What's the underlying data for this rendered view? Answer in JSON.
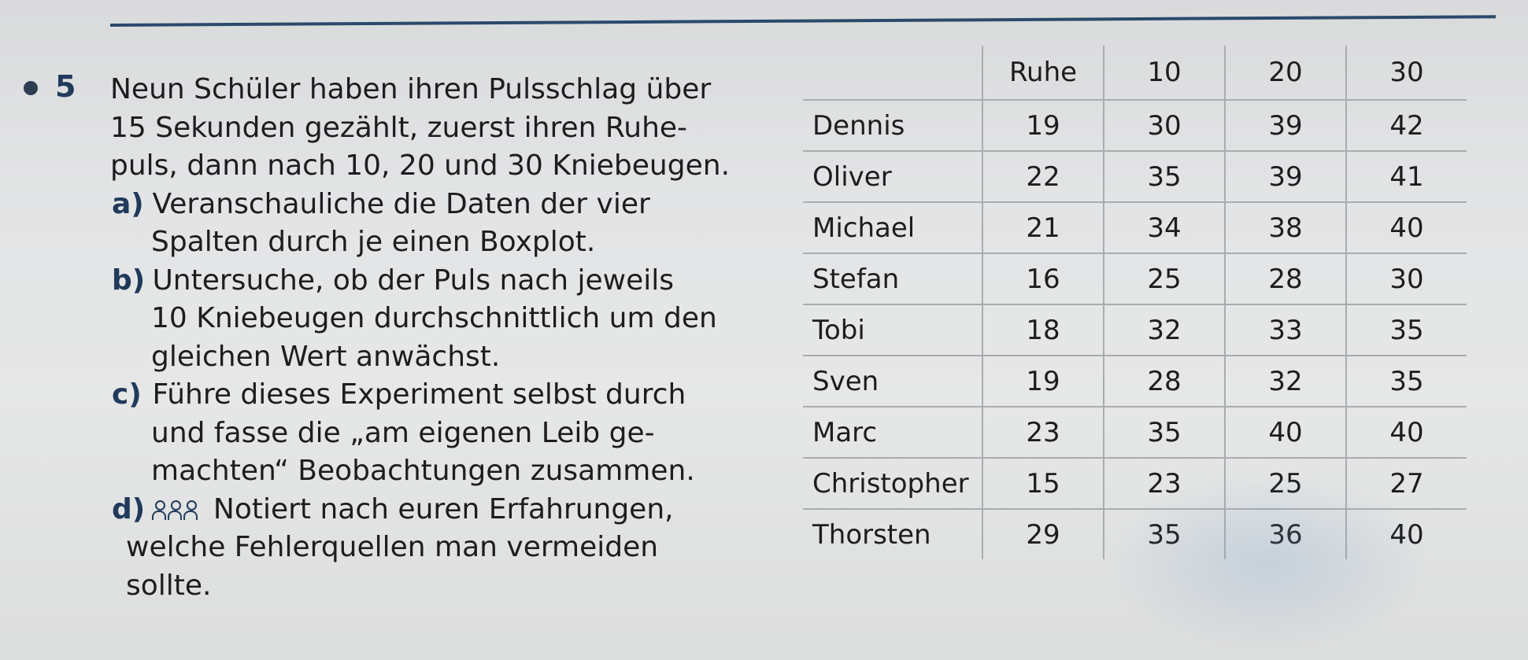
{
  "exercise": {
    "number": "5",
    "intro_lines": [
      "Neun Schüler haben ihren Pulsschlag über",
      "15 Sekunden gezählt, zuerst ihren Ruhe-",
      "puls, dann nach 10, 20 und 30 Kniebeugen."
    ],
    "part_a": {
      "label": "a)",
      "lines": [
        "Veranschauliche die Daten der vier",
        "Spalten durch je einen Boxplot."
      ]
    },
    "part_b": {
      "label": "b)",
      "lines": [
        "Untersuche, ob der Puls nach jeweils",
        "10 Kniebeugen durchschnittlich um den",
        "gleichen Wert anwächst."
      ]
    },
    "part_c": {
      "label": "c)",
      "lines": [
        "Führe dieses Experiment selbst durch",
        "und fasse die „am eigenen Leib ge-",
        "machten“ Beobachtungen zusammen."
      ]
    },
    "part_d": {
      "label": "d)",
      "icon": "group-work-icon",
      "lines": [
        "Notiert nach euren Erfahrungen,",
        "welche Fehlerquellen man vermeiden",
        "sollte."
      ]
    }
  },
  "table": {
    "headers": [
      "",
      "Ruhe",
      "10",
      "20",
      "30"
    ],
    "rows": [
      {
        "name": "Dennis",
        "values": [
          "19",
          "30",
          "39",
          "42"
        ]
      },
      {
        "name": "Oliver",
        "values": [
          "22",
          "35",
          "39",
          "41"
        ]
      },
      {
        "name": "Michael",
        "values": [
          "21",
          "34",
          "38",
          "40"
        ]
      },
      {
        "name": "Stefan",
        "values": [
          "16",
          "25",
          "28",
          "30"
        ]
      },
      {
        "name": "Tobi",
        "values": [
          "18",
          "32",
          "33",
          "35"
        ]
      },
      {
        "name": "Sven",
        "values": [
          "19",
          "28",
          "32",
          "35"
        ]
      },
      {
        "name": "Marc",
        "values": [
          "23",
          "35",
          "40",
          "40"
        ]
      },
      {
        "name": "Christopher",
        "values": [
          "15",
          "23",
          "25",
          "27"
        ]
      },
      {
        "name": "Thorsten",
        "values": [
          "29",
          "35",
          "36",
          "40"
        ]
      }
    ]
  },
  "colors": {
    "accent": "#203a5c",
    "rule": "#2b4a6b",
    "paper": "#e3e4e5",
    "grid": "#a9acb0"
  }
}
